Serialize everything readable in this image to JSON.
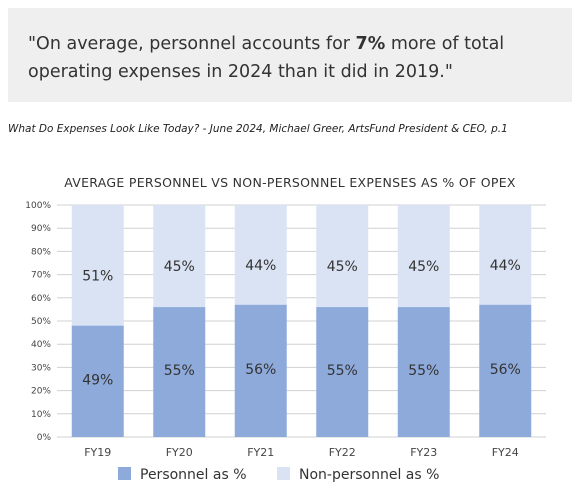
{
  "quote": {
    "before": "\"On average, personnel accounts for ",
    "bold": "7%",
    "after": " more of total operating expenses in 2024 than it did in 2019.\""
  },
  "citation": "What Do Expenses Look Like Today? - June 2024, Michael Greer, ArtsFund President & CEO, p.1",
  "chart_data": {
    "type": "bar",
    "stacked": true,
    "title": "AVERAGE PERSONNEL VS NON-PERSONNEL EXPENSES AS % OF OPEX",
    "categories": [
      "FY19",
      "FY20",
      "FY21",
      "FY22",
      "FY23",
      "FY24"
    ],
    "series": [
      {
        "name": "Personnel as %",
        "values": [
          49,
          55,
          56,
          55,
          55,
          56
        ],
        "labels": [
          "49%",
          "55%",
          "56%",
          "55%",
          "55%",
          "56%"
        ],
        "color": "#8eaadb"
      },
      {
        "name": "Non-personnel as %",
        "values": [
          51,
          45,
          44,
          45,
          45,
          44
        ],
        "labels": [
          "51%",
          "45%",
          "44%",
          "45%",
          "45%",
          "44%"
        ],
        "color": "#dae3f3"
      }
    ],
    "ylim": [
      0,
      100
    ],
    "yticks": [
      "0%",
      "10%",
      "20%",
      "30%",
      "40%",
      "50%",
      "60%",
      "70%",
      "80%",
      "90%",
      "100%"
    ],
    "grid": true,
    "legend": "bottom",
    "bar_heights_percent": [
      48,
      56,
      57,
      56,
      56,
      57
    ]
  }
}
